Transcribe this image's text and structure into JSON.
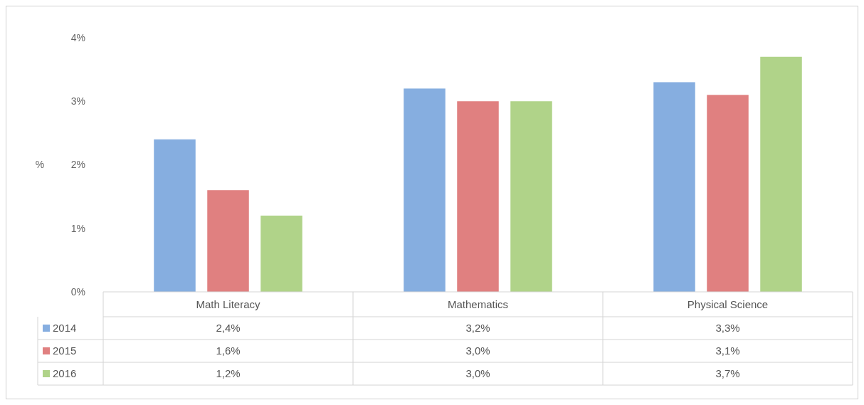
{
  "chart_data": {
    "type": "bar",
    "ylabel": "%",
    "categories": [
      "Math Literacy",
      "Mathematics",
      "Physical Science"
    ],
    "series": [
      {
        "name": "2014",
        "color": "#86aee0",
        "values": [
          2.4,
          3.2,
          3.3
        ],
        "value_labels": [
          "2,4%",
          "3,2%",
          "3,3%"
        ]
      },
      {
        "name": "2015",
        "color": "#e08080",
        "values": [
          1.6,
          3.0,
          3.1
        ],
        "value_labels": [
          "1,6%",
          "3,0%",
          "3,1%"
        ]
      },
      {
        "name": "2016",
        "color": "#b0d389",
        "values": [
          1.2,
          3.0,
          3.7
        ],
        "value_labels": [
          "1,2%",
          "3,0%",
          "3,7%"
        ]
      }
    ],
    "ylim": [
      0,
      4
    ],
    "yticks": [
      {
        "value": 0,
        "label": "0%"
      },
      {
        "value": 1,
        "label": "1%"
      },
      {
        "value": 2,
        "label": "2%"
      },
      {
        "value": 3,
        "label": "3%"
      },
      {
        "value": 4,
        "label": "4%"
      }
    ],
    "grid": false,
    "legend": "bottom"
  }
}
